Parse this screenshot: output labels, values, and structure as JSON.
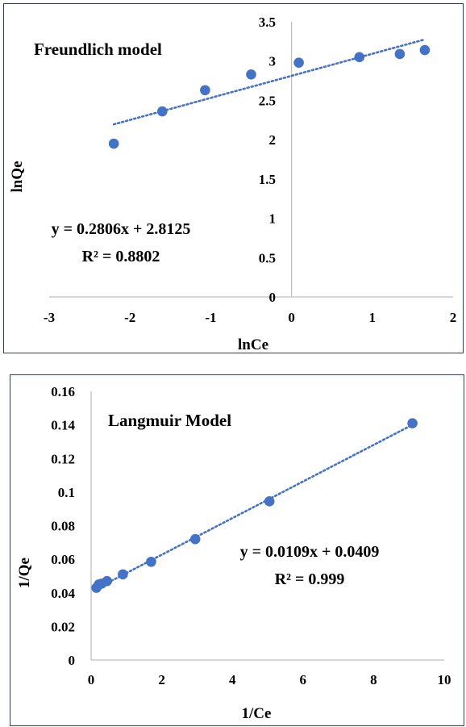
{
  "chart_data": [
    {
      "type": "scatter",
      "title": "Freundlich model",
      "xlabel": "lnCe",
      "ylabel": "lnQe",
      "xlim": [
        -3,
        2
      ],
      "ylim": [
        0,
        3.5
      ],
      "xticks": [
        "-3",
        "-2",
        "-1",
        "0",
        "1",
        "2"
      ],
      "yticks": [
        "0",
        "0.5",
        "1",
        "1.5",
        "2",
        "2.5",
        "3",
        "3.5"
      ],
      "grid": false,
      "trendline": {
        "slope": 0.2806,
        "intercept": 2.8125,
        "x_range": [
          -2.2,
          1.65
        ]
      },
      "equation": "y = 0.2806x + 2.8125",
      "r2": "R² = 0.8802",
      "color": "#4472c4",
      "x": [
        -2.2,
        -1.6,
        -1.07,
        -0.5,
        0.09,
        0.84,
        1.34,
        1.65
      ],
      "y": [
        1.95,
        2.36,
        2.63,
        2.83,
        2.98,
        3.05,
        3.09,
        3.14
      ]
    },
    {
      "type": "scatter",
      "title": "Langmuir Model",
      "xlabel": "1/Ce",
      "ylabel": "1/Qe",
      "xlim": [
        0,
        10
      ],
      "ylim": [
        0,
        0.16
      ],
      "xticks": [
        "0",
        "2",
        "4",
        "6",
        "8",
        "10"
      ],
      "yticks": [
        "0",
        "0.02",
        "0.04",
        "0.06",
        "0.08",
        "0.1",
        "0.12",
        "0.14",
        "0.16"
      ],
      "grid": false,
      "trendline": {
        "slope": 0.0109,
        "intercept": 0.0409,
        "x_range": [
          0.15,
          9.1
        ]
      },
      "equation": "y = 0.0109x + 0.0409",
      "r2": "R² = 0.999",
      "color": "#4472c4",
      "x": [
        0.15,
        0.22,
        0.3,
        0.45,
        0.9,
        1.7,
        2.95,
        5.05,
        9.1
      ],
      "y": [
        0.043,
        0.045,
        0.0455,
        0.047,
        0.051,
        0.0585,
        0.072,
        0.0945,
        0.141
      ]
    }
  ]
}
